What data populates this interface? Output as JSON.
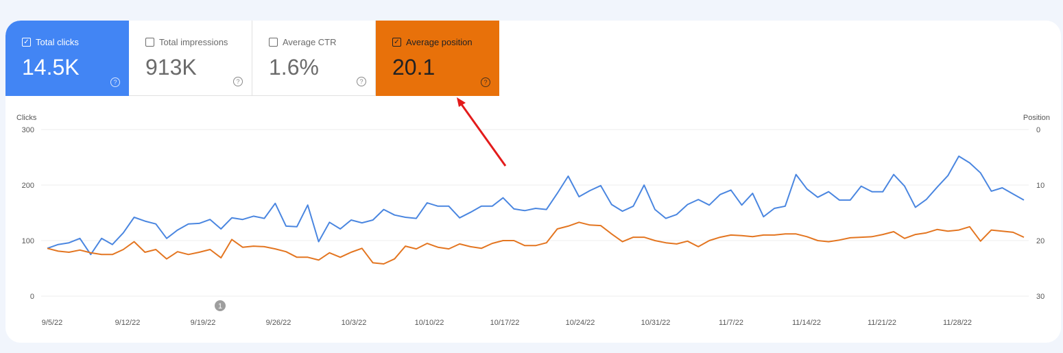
{
  "metrics": [
    {
      "label": "Total clicks",
      "value": "14.5K",
      "checked": true,
      "color": "#4285f4"
    },
    {
      "label": "Total impressions",
      "value": "913K",
      "checked": false
    },
    {
      "label": "Average CTR",
      "value": "1.6%",
      "checked": false
    },
    {
      "label": "Average position",
      "value": "20.1",
      "checked": true,
      "color": "#e8710a"
    }
  ],
  "chart_data": {
    "type": "line",
    "left_axis_label": "Clicks",
    "right_axis_label": "Position",
    "left_ticks": [
      "300",
      "200",
      "100",
      "0"
    ],
    "right_ticks": [
      "0",
      "10",
      "20",
      "30"
    ],
    "left_range": [
      0,
      300
    ],
    "right_range": [
      0,
      30
    ],
    "right_reversed": true,
    "x_ticks": [
      "9/5/22",
      "9/12/22",
      "9/19/22",
      "9/26/22",
      "10/3/22",
      "10/10/22",
      "10/17/22",
      "10/24/22",
      "10/31/22",
      "11/7/22",
      "11/14/22",
      "11/21/22",
      "11/28/22"
    ],
    "annotation": "1",
    "series": [
      {
        "name": "Clicks",
        "color": "#4a86e0",
        "axis": "left",
        "values": [
          86,
          93,
          96,
          104,
          75,
          104,
          93,
          114,
          142,
          135,
          130,
          104,
          119,
          130,
          131,
          138,
          121,
          141,
          138,
          144,
          140,
          167,
          126,
          125,
          164,
          98,
          133,
          121,
          137,
          132,
          137,
          156,
          146,
          142,
          140,
          168,
          162,
          162,
          141,
          151,
          162,
          162,
          177,
          157,
          154,
          158,
          156,
          185,
          216,
          179,
          190,
          199,
          165,
          153,
          162,
          200,
          156,
          140,
          147,
          165,
          174,
          164,
          183,
          191,
          164,
          185,
          143,
          158,
          162,
          219,
          193,
          178,
          188,
          173,
          173,
          198,
          188,
          188,
          219,
          198,
          160,
          174,
          196,
          217,
          252,
          240,
          222,
          189,
          195,
          184,
          173
        ]
      },
      {
        "name": "Position",
        "color": "#e37520",
        "axis": "right",
        "values": [
          21.4,
          21.9,
          22.1,
          21.7,
          22.2,
          22.5,
          22.5,
          21.6,
          20.2,
          22.1,
          21.6,
          23.3,
          22.0,
          22.5,
          22.1,
          21.6,
          23.1,
          19.8,
          21.2,
          21.0,
          21.1,
          21.5,
          22.0,
          23.0,
          23.0,
          23.5,
          22.2,
          23.0,
          22.1,
          21.4,
          24.0,
          24.2,
          23.3,
          21.0,
          21.5,
          20.5,
          21.2,
          21.5,
          20.6,
          21.1,
          21.4,
          20.5,
          20.0,
          20.0,
          20.9,
          20.9,
          20.4,
          17.9,
          17.4,
          16.7,
          17.2,
          17.3,
          18.8,
          20.2,
          19.4,
          19.4,
          20.0,
          20.4,
          20.6,
          20.1,
          21.1,
          20.0,
          19.4,
          19.0,
          19.1,
          19.3,
          19.0,
          19.0,
          18.8,
          18.8,
          19.3,
          20.0,
          20.2,
          19.9,
          19.5,
          19.4,
          19.3,
          18.9,
          18.4,
          19.6,
          18.9,
          18.6,
          18.0,
          18.3,
          18.1,
          17.5,
          20.1,
          18.1,
          18.3,
          18.5,
          19.4
        ]
      }
    ]
  },
  "arrow_color": "#e31b1b"
}
